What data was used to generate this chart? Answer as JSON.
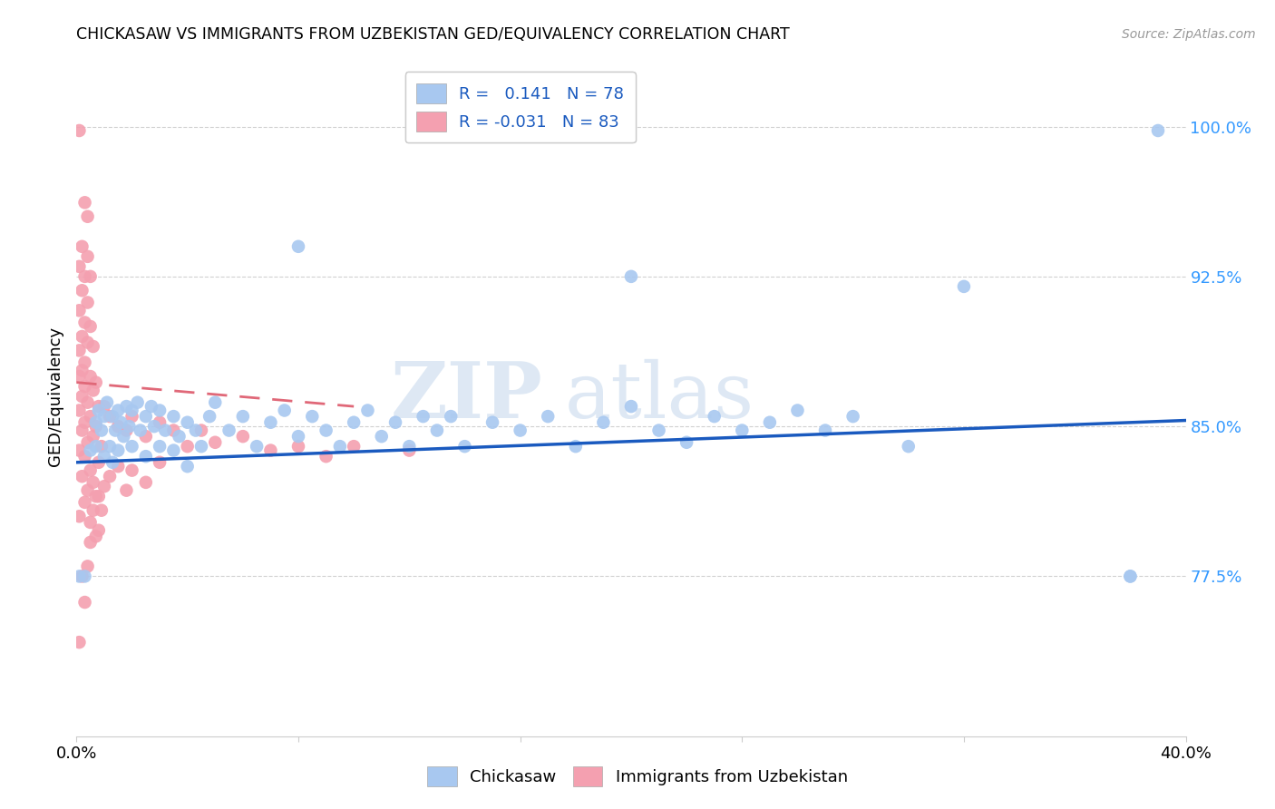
{
  "title": "CHICKASAW VS IMMIGRANTS FROM UZBEKISTAN GED/EQUIVALENCY CORRELATION CHART",
  "source": "Source: ZipAtlas.com",
  "ylabel": "GED/Equivalency",
  "ytick_labels": [
    "77.5%",
    "85.0%",
    "92.5%",
    "100.0%"
  ],
  "ytick_values": [
    0.775,
    0.85,
    0.925,
    1.0
  ],
  "xlim": [
    0.0,
    0.4
  ],
  "ylim": [
    0.695,
    1.035
  ],
  "chickasaw_color": "#a8c8f0",
  "uzbekistan_color": "#f4a0b0",
  "trend_blue": "#1a5abf",
  "trend_pink": "#e06878",
  "watermark_zip": "ZIP",
  "watermark_atlas": "atlas",
  "chickasaw_label": "Chickasaw",
  "uzbekistan_label": "Immigrants from Uzbekistan",
  "blue_trend_x": [
    0.0,
    0.4
  ],
  "blue_trend_y": [
    0.832,
    0.853
  ],
  "pink_trend_x": [
    0.0,
    0.1
  ],
  "pink_trend_y": [
    0.872,
    0.86
  ],
  "chickasaw_points": [
    [
      0.005,
      0.838
    ],
    [
      0.007,
      0.852
    ],
    [
      0.007,
      0.84
    ],
    [
      0.008,
      0.858
    ],
    [
      0.009,
      0.848
    ],
    [
      0.01,
      0.855
    ],
    [
      0.01,
      0.835
    ],
    [
      0.011,
      0.862
    ],
    [
      0.012,
      0.84
    ],
    [
      0.013,
      0.855
    ],
    [
      0.013,
      0.832
    ],
    [
      0.014,
      0.848
    ],
    [
      0.015,
      0.858
    ],
    [
      0.015,
      0.838
    ],
    [
      0.016,
      0.852
    ],
    [
      0.017,
      0.845
    ],
    [
      0.018,
      0.86
    ],
    [
      0.019,
      0.85
    ],
    [
      0.02,
      0.858
    ],
    [
      0.02,
      0.84
    ],
    [
      0.022,
      0.862
    ],
    [
      0.023,
      0.848
    ],
    [
      0.025,
      0.855
    ],
    [
      0.025,
      0.835
    ],
    [
      0.027,
      0.86
    ],
    [
      0.028,
      0.85
    ],
    [
      0.03,
      0.858
    ],
    [
      0.03,
      0.84
    ],
    [
      0.032,
      0.848
    ],
    [
      0.035,
      0.855
    ],
    [
      0.035,
      0.838
    ],
    [
      0.037,
      0.845
    ],
    [
      0.04,
      0.852
    ],
    [
      0.04,
      0.83
    ],
    [
      0.043,
      0.848
    ],
    [
      0.045,
      0.84
    ],
    [
      0.048,
      0.855
    ],
    [
      0.05,
      0.862
    ],
    [
      0.055,
      0.848
    ],
    [
      0.06,
      0.855
    ],
    [
      0.065,
      0.84
    ],
    [
      0.07,
      0.852
    ],
    [
      0.075,
      0.858
    ],
    [
      0.08,
      0.845
    ],
    [
      0.085,
      0.855
    ],
    [
      0.09,
      0.848
    ],
    [
      0.095,
      0.84
    ],
    [
      0.1,
      0.852
    ],
    [
      0.105,
      0.858
    ],
    [
      0.11,
      0.845
    ],
    [
      0.115,
      0.852
    ],
    [
      0.12,
      0.84
    ],
    [
      0.125,
      0.855
    ],
    [
      0.13,
      0.848
    ],
    [
      0.135,
      0.855
    ],
    [
      0.14,
      0.84
    ],
    [
      0.15,
      0.852
    ],
    [
      0.16,
      0.848
    ],
    [
      0.17,
      0.855
    ],
    [
      0.18,
      0.84
    ],
    [
      0.19,
      0.852
    ],
    [
      0.2,
      0.86
    ],
    [
      0.21,
      0.848
    ],
    [
      0.22,
      0.842
    ],
    [
      0.23,
      0.855
    ],
    [
      0.24,
      0.848
    ],
    [
      0.25,
      0.852
    ],
    [
      0.26,
      0.858
    ],
    [
      0.27,
      0.848
    ],
    [
      0.28,
      0.855
    ],
    [
      0.3,
      0.84
    ],
    [
      0.08,
      0.94
    ],
    [
      0.2,
      0.925
    ],
    [
      0.32,
      0.92
    ],
    [
      0.38,
      0.775
    ],
    [
      0.38,
      0.775
    ],
    [
      0.001,
      0.775
    ],
    [
      0.003,
      0.775
    ],
    [
      0.39,
      0.998
    ]
  ],
  "uzbekistan_points": [
    [
      0.001,
      0.998
    ],
    [
      0.003,
      0.962
    ],
    [
      0.004,
      0.955
    ],
    [
      0.002,
      0.94
    ],
    [
      0.004,
      0.935
    ],
    [
      0.001,
      0.93
    ],
    [
      0.003,
      0.925
    ],
    [
      0.005,
      0.925
    ],
    [
      0.002,
      0.918
    ],
    [
      0.004,
      0.912
    ],
    [
      0.001,
      0.908
    ],
    [
      0.003,
      0.902
    ],
    [
      0.005,
      0.9
    ],
    [
      0.002,
      0.895
    ],
    [
      0.004,
      0.892
    ],
    [
      0.006,
      0.89
    ],
    [
      0.001,
      0.888
    ],
    [
      0.003,
      0.882
    ],
    [
      0.002,
      0.878
    ],
    [
      0.005,
      0.875
    ],
    [
      0.001,
      0.875
    ],
    [
      0.007,
      0.872
    ],
    [
      0.003,
      0.87
    ],
    [
      0.006,
      0.868
    ],
    [
      0.002,
      0.865
    ],
    [
      0.004,
      0.862
    ],
    [
      0.008,
      0.86
    ],
    [
      0.001,
      0.858
    ],
    [
      0.005,
      0.855
    ],
    [
      0.003,
      0.852
    ],
    [
      0.007,
      0.85
    ],
    [
      0.002,
      0.848
    ],
    [
      0.006,
      0.845
    ],
    [
      0.004,
      0.842
    ],
    [
      0.009,
      0.84
    ],
    [
      0.001,
      0.838
    ],
    [
      0.003,
      0.835
    ],
    [
      0.008,
      0.832
    ],
    [
      0.005,
      0.828
    ],
    [
      0.002,
      0.825
    ],
    [
      0.006,
      0.822
    ],
    [
      0.004,
      0.818
    ],
    [
      0.007,
      0.815
    ],
    [
      0.003,
      0.812
    ],
    [
      0.009,
      0.808
    ],
    [
      0.001,
      0.805
    ],
    [
      0.005,
      0.802
    ],
    [
      0.008,
      0.798
    ],
    [
      0.01,
      0.86
    ],
    [
      0.012,
      0.855
    ],
    [
      0.015,
      0.85
    ],
    [
      0.018,
      0.848
    ],
    [
      0.02,
      0.855
    ],
    [
      0.025,
      0.845
    ],
    [
      0.03,
      0.852
    ],
    [
      0.035,
      0.848
    ],
    [
      0.04,
      0.84
    ],
    [
      0.045,
      0.848
    ],
    [
      0.05,
      0.842
    ],
    [
      0.06,
      0.845
    ],
    [
      0.07,
      0.838
    ],
    [
      0.08,
      0.84
    ],
    [
      0.09,
      0.835
    ],
    [
      0.1,
      0.84
    ],
    [
      0.12,
      0.838
    ],
    [
      0.002,
      0.775
    ],
    [
      0.003,
      0.762
    ],
    [
      0.001,
      0.742
    ],
    [
      0.005,
      0.792
    ],
    [
      0.004,
      0.78
    ],
    [
      0.006,
      0.808
    ],
    [
      0.008,
      0.815
    ],
    [
      0.007,
      0.795
    ],
    [
      0.01,
      0.82
    ],
    [
      0.012,
      0.825
    ],
    [
      0.015,
      0.83
    ],
    [
      0.018,
      0.818
    ],
    [
      0.02,
      0.828
    ],
    [
      0.025,
      0.822
    ],
    [
      0.03,
      0.832
    ]
  ]
}
